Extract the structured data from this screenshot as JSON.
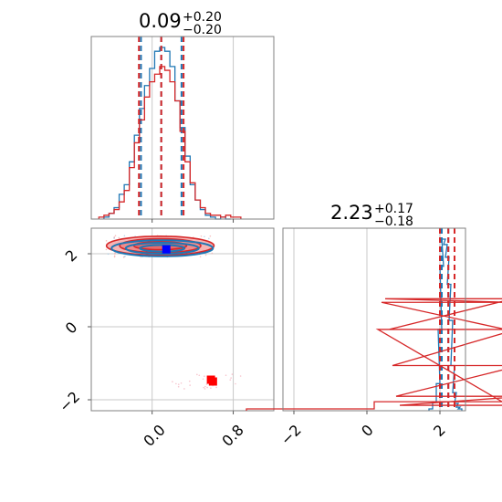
{
  "chart_data": [
    {
      "type": "histogram",
      "panel": "param-1-marginal",
      "title": {
        "value": "0.09",
        "plus": "+0.20",
        "minus": "−0.20"
      },
      "xlim": [
        -0.6,
        1.2
      ],
      "grid": true,
      "series": [
        {
          "name": "",
          "color": "#1f77b4",
          "bin_centers": [
            -0.45,
            -0.4,
            -0.35,
            -0.3,
            -0.25,
            -0.2,
            -0.15,
            -0.1,
            -0.05,
            0.0,
            0.05,
            0.1,
            0.15,
            0.2,
            0.25,
            0.3,
            0.35,
            0.4,
            0.45,
            0.5,
            0.55,
            0.6,
            0.65,
            0.7,
            0.75
          ],
          "counts": [
            0.01,
            0.03,
            0.06,
            0.13,
            0.18,
            0.3,
            0.44,
            0.58,
            0.7,
            0.79,
            0.88,
            0.9,
            0.88,
            0.8,
            0.62,
            0.48,
            0.33,
            0.18,
            0.1,
            0.05,
            0.02,
            0.01,
            0.0,
            0.01,
            0.0
          ],
          "quantiles": [
            -0.11,
            0.09,
            0.29
          ]
        },
        {
          "name": "",
          "color": "#d62728",
          "bin_centers": [
            -0.5,
            -0.45,
            -0.4,
            -0.35,
            -0.3,
            -0.25,
            -0.2,
            -0.15,
            -0.1,
            -0.05,
            0.0,
            0.05,
            0.1,
            0.15,
            0.2,
            0.25,
            0.3,
            0.35,
            0.4,
            0.45,
            0.5,
            0.55,
            0.6,
            0.65,
            0.7,
            0.75,
            0.8,
            0.85
          ],
          "counts": [
            0.01,
            0.02,
            0.03,
            0.05,
            0.09,
            0.15,
            0.27,
            0.4,
            0.52,
            0.64,
            0.72,
            0.76,
            0.8,
            0.78,
            0.72,
            0.62,
            0.46,
            0.3,
            0.19,
            0.1,
            0.06,
            0.03,
            0.02,
            0.02,
            0.01,
            0.02,
            0.01,
            0.01
          ],
          "quantiles": [
            -0.13,
            0.09,
            0.31
          ]
        }
      ]
    },
    {
      "type": "contour",
      "panel": "joint-2d",
      "xlim": [
        -0.6,
        1.2
      ],
      "ylim": [
        -2.3,
        2.7
      ],
      "yticks": [
        -2,
        0,
        2
      ],
      "grid": true,
      "truth_points": [
        {
          "x": 0.14,
          "y": 2.12,
          "color": "#0000ff"
        },
        {
          "x": 0.58,
          "y": -1.45,
          "color": "#ff0000"
        },
        {
          "x": 0.6,
          "y": -1.5,
          "color": "#ff0000"
        }
      ],
      "series": [
        {
          "name": "",
          "color": "#1f77b4",
          "center": [
            0.1,
            2.15
          ],
          "radii": [
            [
              0.5,
              0.22
            ],
            [
              0.36,
              0.15
            ],
            [
              0.22,
              0.09
            ]
          ]
        },
        {
          "name": "",
          "color": "#d62728",
          "center": [
            0.08,
            2.22
          ],
          "radii": [
            [
              0.53,
              0.26
            ],
            [
              0.4,
              0.19
            ],
            [
              0.26,
              0.11
            ]
          ]
        }
      ]
    },
    {
      "type": "histogram",
      "panel": "param-2-marginal",
      "title": {
        "value": "2.23",
        "plus": "+0.17",
        "minus": "−0.18"
      },
      "xlim": [
        -2.3,
        2.7
      ],
      "xticks": [
        -2,
        0,
        2
      ],
      "grid": true,
      "series": [
        {
          "name": "",
          "color": "#1f77b4",
          "bin_centers": [
            1.75,
            1.85,
            1.95,
            2.0,
            2.05,
            2.1,
            2.15,
            2.2,
            2.25,
            2.3,
            2.35,
            2.4,
            2.45,
            2.5,
            2.55
          ],
          "counts": [
            0.01,
            0.05,
            0.15,
            0.45,
            0.8,
            0.95,
            0.92,
            0.85,
            0.7,
            0.5,
            0.25,
            0.1,
            0.04,
            0.02,
            0.01
          ],
          "quantiles": [
            2.05,
            2.23,
            2.4
          ]
        },
        {
          "name": "",
          "color": "#d62728",
          "bin_centers": [
            -1.55,
            1.95,
            2.05,
            2.15,
            2.25,
            2.35,
            2.45,
            2.55,
            2.65
          ],
          "counts": [
            0.01,
            0.05,
            0.45,
            0.6,
            0.62,
            0.45,
            0.25,
            0.08,
            0.03
          ],
          "quantiles": [
            2.0,
            2.23,
            2.4
          ]
        }
      ]
    }
  ],
  "tick_labels": {
    "x_param1": [
      "0.0",
      "0.8"
    ],
    "x_param2": [
      "−2",
      "0",
      "2"
    ],
    "y_param2": [
      "2",
      "0",
      "−2"
    ]
  }
}
